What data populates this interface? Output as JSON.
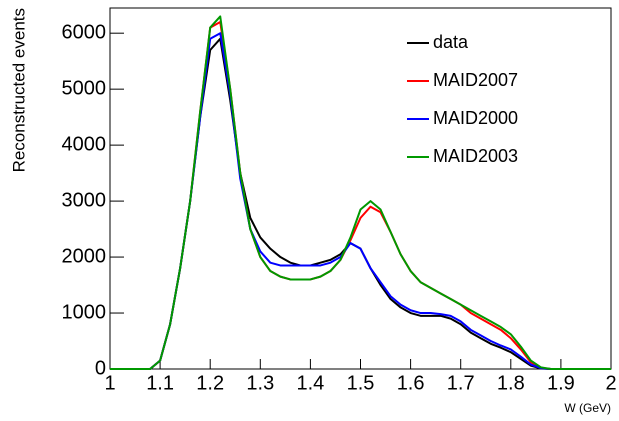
{
  "chart_data": {
    "type": "line",
    "y_label": "Reconstructed events",
    "x_label": "W (GeV)",
    "x": [
      1.0,
      1.02,
      1.04,
      1.06,
      1.08,
      1.1,
      1.12,
      1.14,
      1.16,
      1.18,
      1.2,
      1.22,
      1.24,
      1.26,
      1.28,
      1.3,
      1.32,
      1.34,
      1.36,
      1.38,
      1.4,
      1.42,
      1.44,
      1.46,
      1.48,
      1.5,
      1.52,
      1.54,
      1.56,
      1.58,
      1.6,
      1.62,
      1.64,
      1.66,
      1.68,
      1.7,
      1.72,
      1.74,
      1.76,
      1.78,
      1.8,
      1.82,
      1.84,
      1.86,
      1.88,
      1.9,
      1.92,
      1.94,
      1.96,
      1.98,
      2.0
    ],
    "series": [
      {
        "name": "data",
        "color": "#000000",
        "values": [
          0,
          0,
          0,
          0,
          0,
          150,
          800,
          1800,
          3000,
          4500,
          5700,
          5900,
          4800,
          3500,
          2700,
          2350,
          2150,
          2000,
          1900,
          1850,
          1850,
          1900,
          1950,
          2050,
          2250,
          2150,
          1800,
          1500,
          1250,
          1100,
          1000,
          950,
          950,
          950,
          900,
          800,
          650,
          550,
          450,
          380,
          300,
          180,
          60,
          10,
          0,
          0,
          0,
          0,
          0,
          0,
          0
        ]
      },
      {
        "name": "MAID2007",
        "color": "#ff0000",
        "values": [
          0,
          0,
          0,
          0,
          0,
          150,
          800,
          1800,
          3000,
          4600,
          6100,
          6200,
          5000,
          3500,
          2500,
          2000,
          1750,
          1650,
          1600,
          1600,
          1600,
          1650,
          1750,
          1950,
          2300,
          2700,
          2900,
          2800,
          2450,
          2050,
          1750,
          1550,
          1450,
          1350,
          1250,
          1150,
          1000,
          900,
          800,
          700,
          550,
          350,
          120,
          20,
          0,
          0,
          0,
          0,
          0,
          0,
          0
        ]
      },
      {
        "name": "MAID2000",
        "color": "#0000ff",
        "values": [
          0,
          0,
          0,
          0,
          0,
          150,
          800,
          1800,
          3000,
          4500,
          5900,
          6000,
          4900,
          3400,
          2500,
          2100,
          1900,
          1850,
          1850,
          1850,
          1850,
          1850,
          1900,
          2000,
          2250,
          2150,
          1800,
          1550,
          1300,
          1150,
          1050,
          1000,
          1000,
          980,
          950,
          850,
          700,
          600,
          500,
          420,
          350,
          220,
          80,
          15,
          0,
          0,
          0,
          0,
          0,
          0,
          0
        ]
      },
      {
        "name": "MAID2003",
        "color": "#009900",
        "values": [
          0,
          0,
          0,
          0,
          0,
          150,
          800,
          1800,
          3000,
          4600,
          6100,
          6300,
          5000,
          3500,
          2500,
          2000,
          1750,
          1650,
          1600,
          1600,
          1600,
          1650,
          1750,
          1950,
          2350,
          2850,
          3000,
          2850,
          2450,
          2050,
          1750,
          1550,
          1450,
          1350,
          1250,
          1150,
          1050,
          950,
          850,
          750,
          620,
          400,
          150,
          30,
          0,
          0,
          0,
          0,
          0,
          0,
          0
        ]
      }
    ],
    "xlim": [
      1,
      2
    ],
    "xticks": [
      1,
      1.1,
      1.2,
      1.3,
      1.4,
      1.5,
      1.6,
      1.7,
      1.8,
      1.9,
      2
    ],
    "ylim": [
      0,
      6450
    ],
    "yticks": [
      0,
      1000,
      2000,
      3000,
      4000,
      5000,
      6000
    ],
    "legend": "upper-right"
  }
}
